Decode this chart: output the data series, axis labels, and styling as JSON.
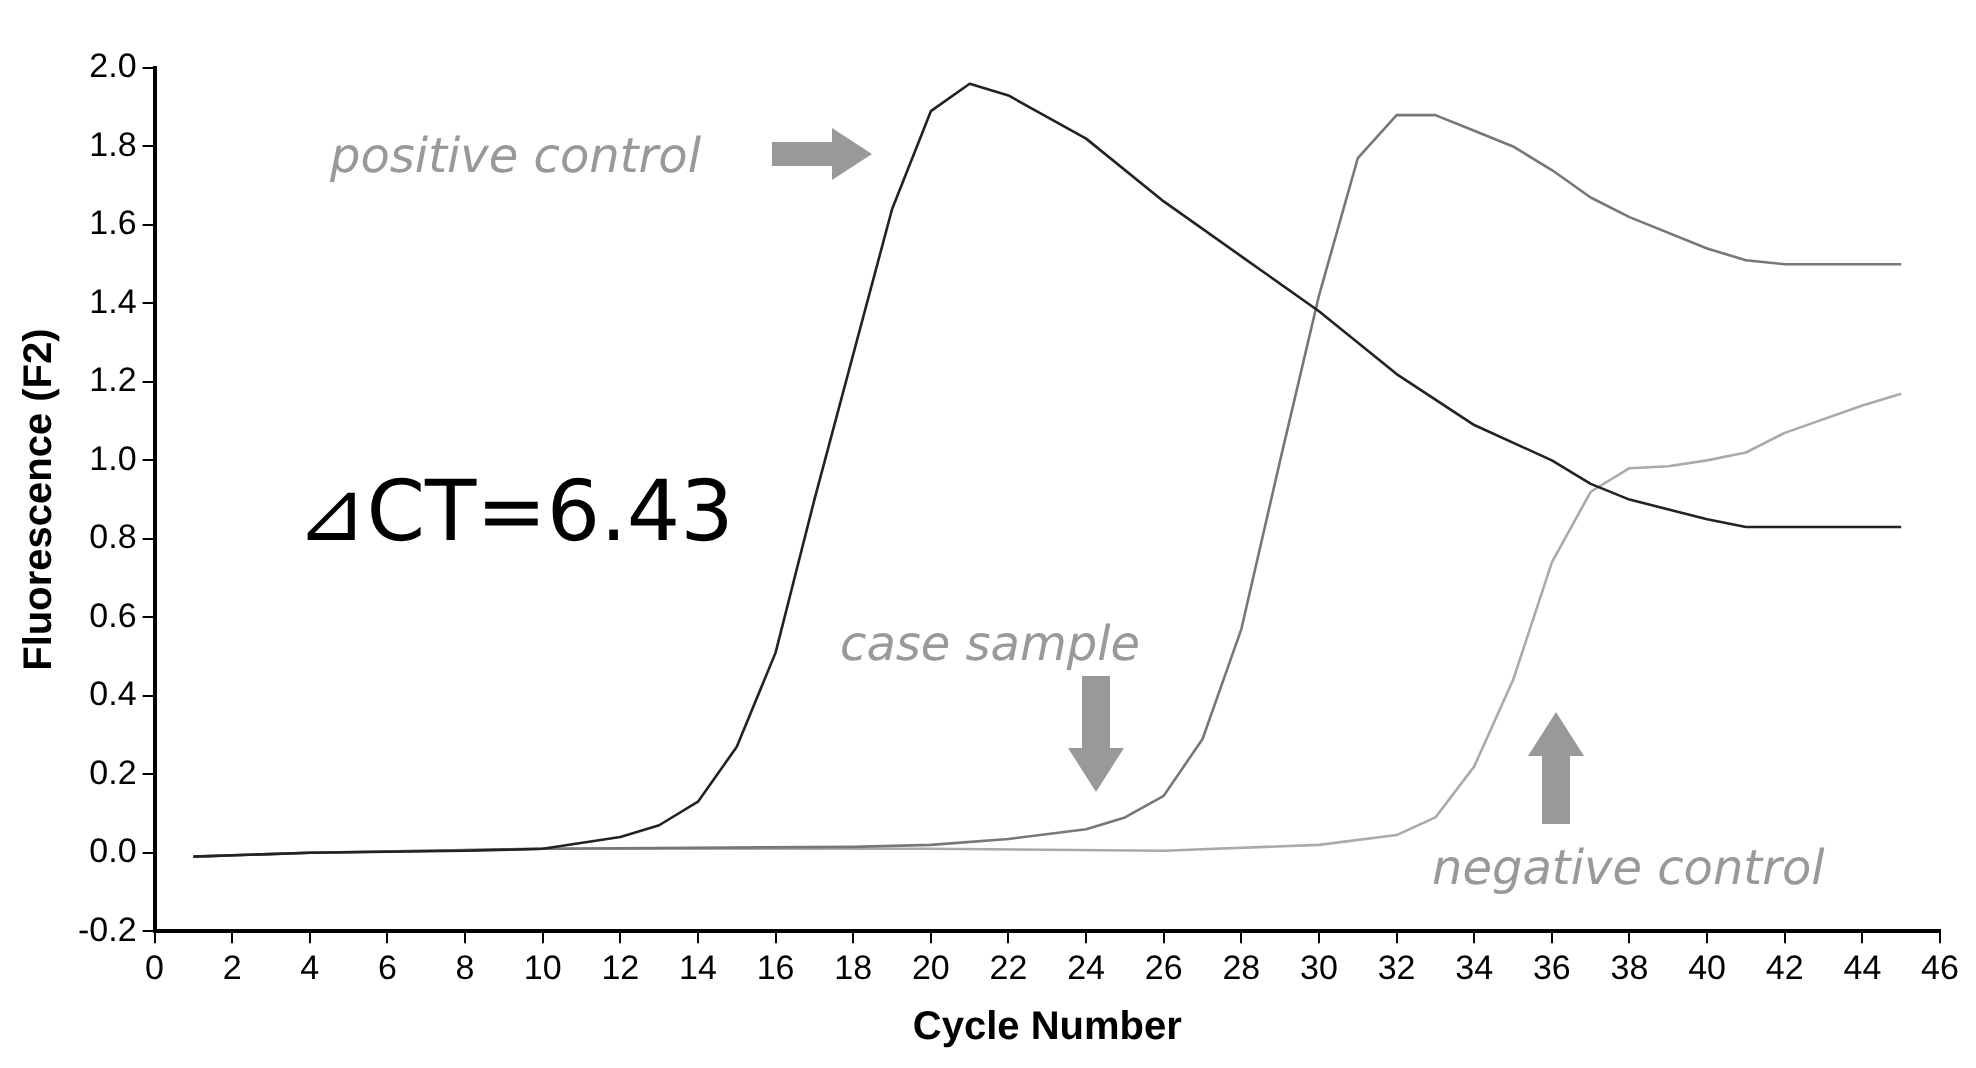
{
  "chart_data": {
    "type": "line",
    "xlabel": "Cycle Number",
    "ylabel": "Fluorescence (F2)",
    "xlim": [
      0,
      46
    ],
    "xticks": [
      0,
      2,
      4,
      6,
      8,
      10,
      12,
      14,
      16,
      18,
      20,
      22,
      24,
      26,
      28,
      30,
      32,
      34,
      36,
      38,
      40,
      42,
      44,
      46
    ],
    "ylim": [
      -0.2,
      2.0
    ],
    "yticks": [
      {
        "value": -0.2,
        "label": "-0.2"
      },
      {
        "value": 0,
        "label": "0.0"
      },
      {
        "value": 0.2,
        "label": "0.2"
      },
      {
        "value": 0.4,
        "label": "0.4"
      },
      {
        "value": 0.6,
        "label": "0.6"
      },
      {
        "value": 0.8,
        "label": "0.8"
      },
      {
        "value": 1.0,
        "label": "1.0"
      },
      {
        "value": 1.2,
        "label": "1.2"
      },
      {
        "value": 1.4,
        "label": "1.4"
      },
      {
        "value": 1.6,
        "label": "1.6"
      },
      {
        "value": 1.8,
        "label": "1.8"
      },
      {
        "value": 2.0,
        "label": "2.0"
      }
    ],
    "grid": false,
    "legend": false,
    "marker": "none",
    "line_style": "solid",
    "series": [
      {
        "color": "#222222",
        "x": [
          1,
          4,
          8,
          10,
          12,
          13,
          14,
          15,
          16,
          17,
          18,
          19,
          20,
          21,
          22,
          24,
          26,
          28,
          30,
          32,
          34,
          36,
          37,
          38,
          40,
          41,
          42,
          45
        ],
        "values": [
          -0.01,
          0.0,
          0.005,
          0.01,
          0.04,
          0.07,
          0.13,
          0.27,
          0.51,
          0.9,
          1.27,
          1.64,
          1.89,
          1.96,
          1.93,
          1.82,
          1.66,
          1.52,
          1.38,
          1.22,
          1.09,
          1.0,
          0.94,
          0.9,
          0.85,
          0.83,
          0.83,
          0.83
        ]
      },
      {
        "color": "#777777",
        "x": [
          1,
          4,
          10,
          18,
          20,
          22,
          24,
          25,
          26,
          27,
          28,
          29,
          30,
          31,
          32,
          33,
          34,
          35,
          36,
          37,
          38,
          40,
          41,
          42,
          45
        ],
        "values": [
          -0.01,
          0.0,
          0.01,
          0.015,
          0.02,
          0.035,
          0.06,
          0.09,
          0.145,
          0.29,
          0.57,
          1.0,
          1.42,
          1.77,
          1.88,
          1.88,
          1.84,
          1.8,
          1.74,
          1.67,
          1.62,
          1.54,
          1.51,
          1.5,
          1.5
        ]
      },
      {
        "color": "#aaaaaa",
        "x": [
          1,
          4,
          10,
          20,
          26,
          30,
          32,
          33,
          34,
          35,
          36,
          37,
          38,
          39,
          40,
          41,
          42,
          44,
          45
        ],
        "values": [
          -0.01,
          0.0,
          0.01,
          0.01,
          0.005,
          0.02,
          0.045,
          0.09,
          0.22,
          0.44,
          0.74,
          0.92,
          0.98,
          0.985,
          1.0,
          1.02,
          1.07,
          1.14,
          1.17
        ]
      }
    ],
    "annotations": [
      "positive control",
      "⊿CT=6.43",
      "case sample",
      "negative control"
    ]
  }
}
